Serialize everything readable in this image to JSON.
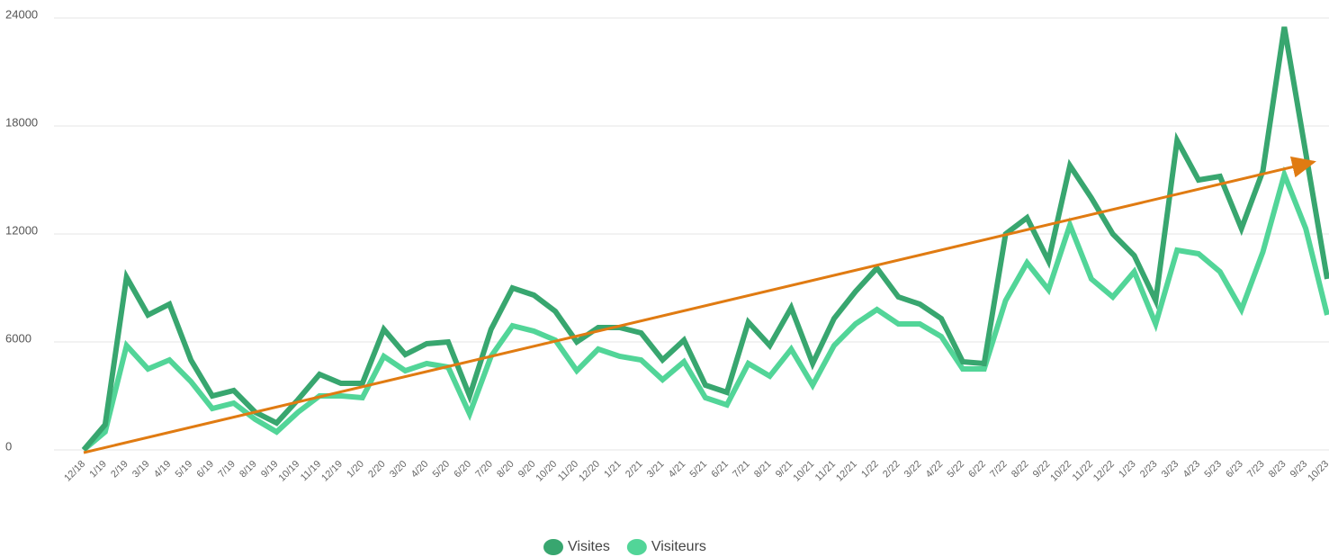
{
  "chart_data": {
    "type": "line",
    "categories": [
      "12/18",
      "1/19",
      "2/19",
      "3/19",
      "4/19",
      "5/19",
      "6/19",
      "7/19",
      "8/19",
      "9/19",
      "10/19",
      "11/19",
      "12/19",
      "1/20",
      "2/20",
      "3/20",
      "4/20",
      "5/20",
      "6/20",
      "7/20",
      "8/20",
      "9/20",
      "10/20",
      "11/20",
      "12/20",
      "1/21",
      "2/21",
      "3/21",
      "4/21",
      "5/21",
      "6/21",
      "7/21",
      "8/21",
      "9/21",
      "10/21",
      "11/21",
      "12/21",
      "1/22",
      "2/22",
      "3/22",
      "4/22",
      "5/22",
      "6/22",
      "7/22",
      "8/22",
      "9/22",
      "10/22",
      "11/22",
      "12/22",
      "1/23",
      "2/23",
      "3/23",
      "4/23",
      "5/23",
      "6/23",
      "7/23",
      "8/23",
      "9/23",
      "10/23"
    ],
    "series": [
      {
        "name": "Visites",
        "color": "#38a66f",
        "values": [
          0,
          1400,
          9600,
          7500,
          8100,
          5000,
          3000,
          3300,
          2100,
          1500,
          2800,
          4200,
          3700,
          3700,
          6700,
          5300,
          5900,
          6000,
          3000,
          6700,
          9000,
          8600,
          7700,
          6000,
          6800,
          6800,
          6500,
          5000,
          6100,
          3600,
          3200,
          7100,
          5800,
          7900,
          4800,
          7300,
          8800,
          10100,
          8500,
          8100,
          7300,
          4900,
          4800,
          12000,
          12900,
          10500,
          15800,
          14000,
          12000,
          10800,
          8300,
          17200,
          15000,
          15200,
          12300,
          15500,
          23500,
          16500,
          9500
        ]
      },
      {
        "name": "Visiteurs",
        "color": "#52d598",
        "values": [
          0,
          1000,
          5800,
          4500,
          5000,
          3800,
          2300,
          2600,
          1700,
          1000,
          2100,
          3000,
          3000,
          2900,
          5200,
          4400,
          4800,
          4600,
          2000,
          5200,
          6900,
          6600,
          6100,
          4400,
          5600,
          5200,
          5000,
          3900,
          4900,
          2900,
          2500,
          4800,
          4100,
          5600,
          3600,
          5800,
          7000,
          7800,
          7000,
          7000,
          6300,
          4500,
          4500,
          8300,
          10400,
          8900,
          12500,
          9500,
          8500,
          9900,
          7000,
          11100,
          10900,
          9900,
          7800,
          11000,
          15300,
          12300,
          7500
        ]
      }
    ],
    "ylim": [
      0,
      24000
    ],
    "yticks": [
      0,
      6000,
      12000,
      18000,
      24000
    ],
    "grid": true
  }
}
